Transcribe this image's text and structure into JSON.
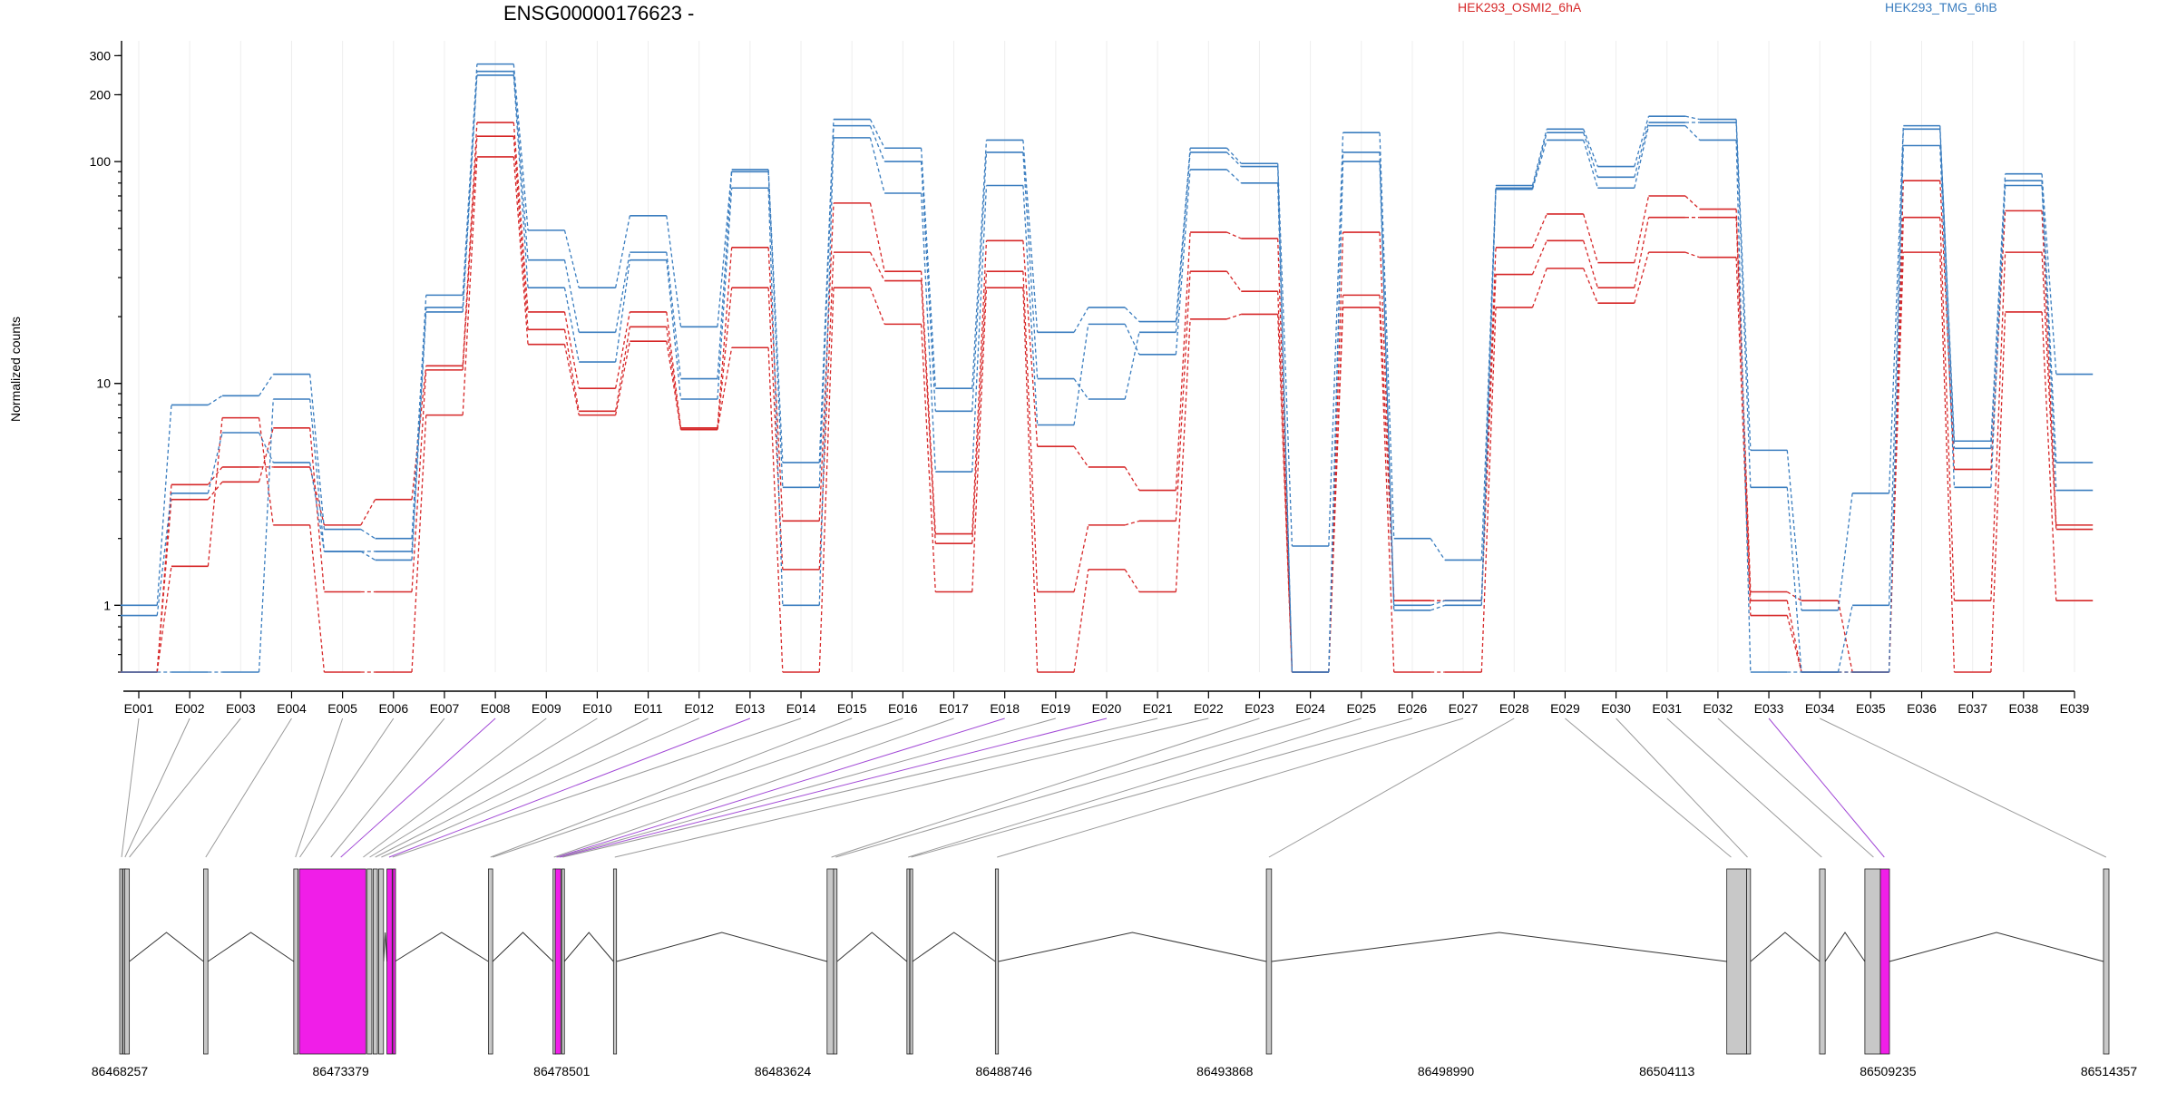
{
  "chart_data": {
    "type": "line",
    "title": "ENSG00000176623 -",
    "ylabel": "Normalized counts",
    "xlabel": "",
    "yscale": "log",
    "ylim": [
      0.5,
      350
    ],
    "yticks": [
      1,
      10,
      100,
      200,
      300
    ],
    "grid": "vertical light gray lines at each exon",
    "legend": {
      "placement": "top, horizontal"
    },
    "categories": [
      "E001",
      "E002",
      "E003",
      "E004",
      "E005",
      "E006",
      "E007",
      "E008",
      "E009",
      "E010",
      "E011",
      "E012",
      "E013",
      "E014",
      "E015",
      "E016",
      "E017",
      "E018",
      "E019",
      "E020",
      "E021",
      "E022",
      "E023",
      "E024",
      "E025",
      "E026",
      "E027",
      "E028",
      "E029",
      "E030",
      "E031",
      "E032",
      "E033",
      "E034",
      "E035",
      "E036",
      "E037",
      "E038",
      "E039"
    ],
    "groups": [
      {
        "name": "HEK293_OSMI2_6hA",
        "color": "#d62728"
      },
      {
        "name": "HEK293_TMG_6hB",
        "color": "#3a7dbf"
      }
    ],
    "series": [
      {
        "group": "HEK293_OSMI2_6hA",
        "color": "#d62728",
        "values": [
          0.5,
          3.5,
          4.2,
          4.2,
          2.3,
          3,
          12,
          150,
          21,
          9.5,
          21,
          6.3,
          41,
          2.4,
          65,
          32,
          2.1,
          44,
          5.2,
          4.2,
          3.3,
          48,
          45,
          0.5,
          48,
          1.05,
          1.05,
          41,
          58,
          35,
          70,
          61,
          1.15,
          1.05,
          0.5,
          82,
          4.1,
          60,
          2.3
        ]
      },
      {
        "group": "HEK293_OSMI2_6hA",
        "color": "#d62728",
        "values": [
          0.5,
          3,
          3.6,
          6.3,
          1.15,
          1.15,
          11.5,
          130,
          17.5,
          7.5,
          18,
          6.2,
          27,
          1.45,
          39,
          29,
          1.9,
          32,
          1.15,
          2.3,
          2.4,
          32,
          26,
          0.5,
          25,
          1.05,
          1.05,
          31,
          44,
          27,
          56,
          56,
          1.05,
          0.5,
          0.5,
          56,
          1.05,
          39,
          2.2
        ]
      },
      {
        "group": "HEK293_OSMI2_6hA",
        "color": "#d62728",
        "values": [
          0.5,
          1.5,
          7,
          2.3,
          0.5,
          0.5,
          7.2,
          105,
          15,
          7.2,
          15.5,
          6.2,
          14.5,
          0.5,
          27,
          18.5,
          1.15,
          27,
          0.5,
          1.45,
          1.15,
          19.5,
          20.5,
          0.5,
          22,
          0.5,
          0.5,
          22,
          33,
          23,
          39,
          37,
          0.9,
          0.5,
          0.5,
          39,
          0.5,
          21,
          1.05
        ]
      },
      {
        "group": "HEK293_TMG_6hB",
        "color": "#3a7dbf",
        "values": [
          1,
          8,
          8.8,
          11,
          2.2,
          2,
          25,
          275,
          49,
          27,
          57,
          18,
          92,
          4.4,
          155,
          115,
          9.5,
          125,
          17,
          22,
          19,
          115,
          98,
          1.85,
          135,
          2,
          1.6,
          78,
          140,
          95,
          160,
          155,
          5,
          0.95,
          3.2,
          145,
          5.5,
          88,
          11
        ]
      },
      {
        "group": "HEK293_TMG_6hB",
        "color": "#3a7dbf",
        "values": [
          0.9,
          3.2,
          6,
          4.4,
          1.75,
          1.75,
          22,
          255,
          36,
          17,
          39,
          10.5,
          90,
          3.4,
          145,
          100,
          7.5,
          110,
          10.5,
          8.5,
          17,
          110,
          95,
          0.5,
          110,
          1,
          1.05,
          76,
          135,
          85,
          150,
          150,
          3.4,
          0.5,
          1,
          140,
          5.1,
          82,
          4.4
        ]
      },
      {
        "group": "HEK293_TMG_6hB",
        "color": "#3a7dbf",
        "values": [
          0.5,
          0.5,
          0.5,
          8.5,
          1.75,
          1.6,
          21,
          245,
          27,
          12.5,
          36,
          8.5,
          76,
          1,
          128,
          72,
          4,
          78,
          6.5,
          18.5,
          13.5,
          92,
          80,
          0.5,
          100,
          0.95,
          1,
          75,
          125,
          76,
          145,
          125,
          0.5,
          0.5,
          0.5,
          118,
          3.4,
          78,
          3.3
        ]
      }
    ],
    "gene_model": {
      "coordinate_ticks": [
        86468257,
        86473379,
        86478501,
        86483624,
        86488746,
        86493868,
        86498990,
        86504113,
        86509235,
        86514357
      ],
      "exons": [
        {
          "start": 86468257,
          "end": 86468310,
          "highlight": false
        },
        {
          "start": 86468330,
          "end": 86468370,
          "highlight": false
        },
        {
          "start": 86468372,
          "end": 86468480,
          "highlight": false
        },
        {
          "start": 86470200,
          "end": 86470300,
          "highlight": false
        },
        {
          "start": 86472290,
          "end": 86472390,
          "highlight": false
        },
        {
          "start": 86472420,
          "end": 86473960,
          "highlight": true
        },
        {
          "start": 86473990,
          "end": 86474100,
          "highlight": false
        },
        {
          "start": 86474130,
          "end": 86474230,
          "highlight": false
        },
        {
          "start": 86474260,
          "end": 86474370,
          "highlight": false
        },
        {
          "start": 86474450,
          "end": 86474570,
          "highlight": true
        },
        {
          "start": 86474585,
          "end": 86474635,
          "highlight": true
        },
        {
          "start": 86476800,
          "end": 86476900,
          "highlight": false
        },
        {
          "start": 86478300,
          "end": 86478345,
          "highlight": false
        },
        {
          "start": 86478350,
          "end": 86478480,
          "highlight": true
        },
        {
          "start": 86478500,
          "end": 86478560,
          "highlight": false
        },
        {
          "start": 86479700,
          "end": 86479770,
          "highlight": false
        },
        {
          "start": 86484650,
          "end": 86484800,
          "highlight": false
        },
        {
          "start": 86484800,
          "end": 86484880,
          "highlight": false
        },
        {
          "start": 86486500,
          "end": 86486560,
          "highlight": false
        },
        {
          "start": 86486570,
          "end": 86486630,
          "highlight": false
        },
        {
          "start": 86488550,
          "end": 86488620,
          "highlight": false
        },
        {
          "start": 86494830,
          "end": 86494950,
          "highlight": false
        },
        {
          "start": 86505500,
          "end": 86505960,
          "highlight": false
        },
        {
          "start": 86505960,
          "end": 86506050,
          "highlight": false
        },
        {
          "start": 86507650,
          "end": 86507780,
          "highlight": false
        },
        {
          "start": 86508700,
          "end": 86509060,
          "highlight": false
        },
        {
          "start": 86509060,
          "end": 86509270,
          "highlight": true
        },
        {
          "start": 86514230,
          "end": 86514357,
          "highlight": false
        }
      ],
      "connectors": [
        {
          "exon": "E001",
          "coord": 86468300,
          "highlight": false
        },
        {
          "exon": "E002",
          "coord": 86468380,
          "highlight": false
        },
        {
          "exon": "E003",
          "coord": 86468480,
          "highlight": false
        },
        {
          "exon": "E004",
          "coord": 86470250,
          "highlight": false
        },
        {
          "exon": "E005",
          "coord": 86472330,
          "highlight": false
        },
        {
          "exon": "E006",
          "coord": 86472430,
          "highlight": false
        },
        {
          "exon": "E007",
          "coord": 86473150,
          "highlight": false
        },
        {
          "exon": "E008",
          "coord": 86473380,
          "highlight": true
        },
        {
          "exon": "E009",
          "coord": 86473900,
          "highlight": false
        },
        {
          "exon": "E010",
          "coord": 86474050,
          "highlight": false
        },
        {
          "exon": "E011",
          "coord": 86474180,
          "highlight": false
        },
        {
          "exon": "E012",
          "coord": 86474320,
          "highlight": false
        },
        {
          "exon": "E013",
          "coord": 86474500,
          "highlight": true
        },
        {
          "exon": "E014",
          "coord": 86474580,
          "highlight": false
        },
        {
          "exon": "E015",
          "coord": 86476850,
          "highlight": false
        },
        {
          "exon": "E016",
          "coord": 86476900,
          "highlight": false
        },
        {
          "exon": "E017",
          "coord": 86478320,
          "highlight": false
        },
        {
          "exon": "E018",
          "coord": 86478380,
          "highlight": true
        },
        {
          "exon": "E019",
          "coord": 86478420,
          "highlight": false
        },
        {
          "exon": "E020",
          "coord": 86478460,
          "highlight": true
        },
        {
          "exon": "E021",
          "coord": 86478520,
          "highlight": false
        },
        {
          "exon": "E022",
          "coord": 86479730,
          "highlight": false
        },
        {
          "exon": "E023",
          "coord": 86484750,
          "highlight": false
        },
        {
          "exon": "E024",
          "coord": 86484850,
          "highlight": false
        },
        {
          "exon": "E025",
          "coord": 86486530,
          "highlight": false
        },
        {
          "exon": "E026",
          "coord": 86486600,
          "highlight": false
        },
        {
          "exon": "E027",
          "coord": 86488590,
          "highlight": false
        },
        {
          "exon": "E028",
          "coord": 86494890,
          "highlight": false
        },
        {
          "exon": "E029",
          "coord": 86505600,
          "highlight": false
        },
        {
          "exon": "E030",
          "coord": 86505980,
          "highlight": false
        },
        {
          "exon": "E031",
          "coord": 86507700,
          "highlight": false
        },
        {
          "exon": "E032",
          "coord": 86508900,
          "highlight": false
        },
        {
          "exon": "E033",
          "coord": 86509150,
          "highlight": true
        },
        {
          "exon": "E034",
          "coord": 86514290,
          "highlight": false
        }
      ]
    }
  },
  "colors": {
    "group1": "#d62728",
    "group2": "#3a7dbf",
    "highlight_exon": "#f01ee8",
    "highlight_connector": "#a24ad6",
    "exon_fill": "#c8c8c8",
    "connector": "#9a9a9a"
  }
}
